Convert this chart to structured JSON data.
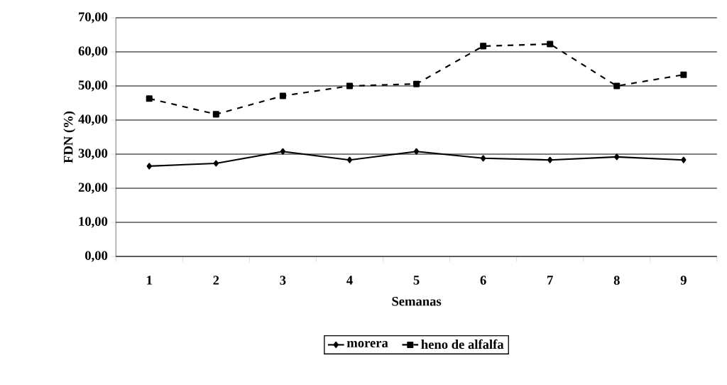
{
  "chart_data": {
    "type": "line",
    "xlabel": "Semanas",
    "ylabel": "FDN (%)",
    "categories": [
      "1",
      "2",
      "3",
      "4",
      "5",
      "6",
      "7",
      "8",
      "9"
    ],
    "ylim": [
      0,
      70
    ],
    "yticks": [
      {
        "value": 0,
        "label": "0,00"
      },
      {
        "value": 10,
        "label": "10,00"
      },
      {
        "value": 20,
        "label": "20,00"
      },
      {
        "value": 30,
        "label": "30,00"
      },
      {
        "value": 40,
        "label": "40,00"
      },
      {
        "value": 50,
        "label": "50,00"
      },
      {
        "value": 60,
        "label": "60,00"
      },
      {
        "value": 70,
        "label": "70,00"
      }
    ],
    "grid": "y",
    "legend": "bottom",
    "series": [
      {
        "name": "morera",
        "color": "#000000",
        "marker": "diamond",
        "line_style": "solid",
        "values": [
          26.5,
          27.3,
          30.8,
          28.3,
          30.8,
          28.8,
          28.3,
          29.2,
          28.3
        ]
      },
      {
        "name": "heno de alfalfa",
        "color": "#000000",
        "marker": "square",
        "line_style": "dashed",
        "values": [
          46.3,
          41.7,
          47.1,
          50.0,
          50.6,
          61.7,
          62.3,
          50.0,
          53.3
        ]
      }
    ]
  }
}
